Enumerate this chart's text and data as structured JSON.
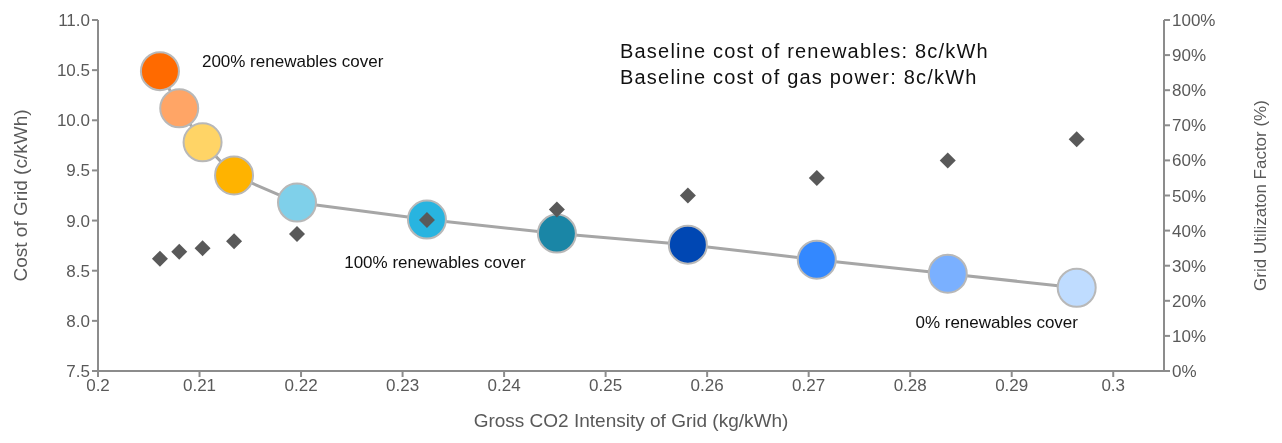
{
  "chart_data": {
    "type": "line",
    "xlabel": "Gross CO2 Intensity of Grid (kg/kWh)",
    "ylabel": "Cost of Grid (c/kWh)",
    "y2label": "Grid Utilizaton Factor (%)",
    "xlim": [
      0.2,
      0.305
    ],
    "xticks": [
      0.2,
      0.21,
      0.22,
      0.23,
      0.24,
      0.25,
      0.26,
      0.27,
      0.28,
      0.29,
      0.3
    ],
    "ylim": [
      7.5,
      11
    ],
    "yticks": [
      {
        "value": 7.5,
        "label": "7.5"
      },
      {
        "value": 8,
        "label": "8.0"
      },
      {
        "value": 8.5,
        "label": "8.5"
      },
      {
        "value": 9,
        "label": "9.0"
      },
      {
        "value": 9.5,
        "label": "9.5"
      },
      {
        "value": 10,
        "label": "10.0"
      },
      {
        "value": 10.5,
        "label": "10.5"
      },
      {
        "value": 11,
        "label": "11.0"
      }
    ],
    "y2lim": [
      0,
      100
    ],
    "y2ticks": [
      {
        "value": 0,
        "label": "0%"
      },
      {
        "value": 10,
        "label": "10%"
      },
      {
        "value": 20,
        "label": "20%"
      },
      {
        "value": 30,
        "label": "30%"
      },
      {
        "value": 40,
        "label": "40%"
      },
      {
        "value": 50,
        "label": "50%"
      },
      {
        "value": 60,
        "label": "60%"
      },
      {
        "value": 70,
        "label": "70%"
      },
      {
        "value": 80,
        "label": "80%"
      },
      {
        "value": 90,
        "label": "90%"
      },
      {
        "value": 100,
        "label": "100%"
      }
    ],
    "series": [
      {
        "color": "#a6a6a6",
        "marker": "circle",
        "x": [
          0.2061,
          0.208,
          0.2103,
          0.2134,
          0.2196,
          0.2324,
          0.2452,
          0.2581,
          0.2708,
          0.2837,
          0.2964
        ],
        "values": [
          10.49,
          10.12,
          9.78,
          9.45,
          9.18,
          9.01,
          8.87,
          8.76,
          8.61,
          8.47,
          8.33
        ],
        "colors": [
          "#ff6a00",
          "#ffa566",
          "#ffd466",
          "#ffb300",
          "#7fd0ea",
          "#28b4e0",
          "#1a86a6",
          "#0047b3",
          "#3388ff",
          "#7ab0ff",
          "#bfdcff"
        ]
      },
      {
        "type": "scatter",
        "axis": "y2",
        "color": "#595959",
        "marker": "diamond",
        "x": [
          0.2061,
          0.208,
          0.2103,
          0.2134,
          0.2196,
          0.2324,
          0.2452,
          0.2581,
          0.2708,
          0.2837,
          0.2964
        ],
        "values": [
          32,
          34,
          35,
          37,
          39,
          43,
          46,
          50,
          55,
          60,
          66
        ]
      }
    ],
    "annotations": [
      {
        "text": "200% renewables cover",
        "x": 0.2061,
        "y": 10.49
      },
      {
        "text": "100% renewables cover",
        "x": 0.2324,
        "y": 9.01
      },
      {
        "text": "0% renewables cover",
        "x": 0.2964,
        "y": 8.33
      },
      "Baseline cost of renewables: 8c/kWh",
      "Baseline cost of gas power: 8c/kWh"
    ]
  }
}
